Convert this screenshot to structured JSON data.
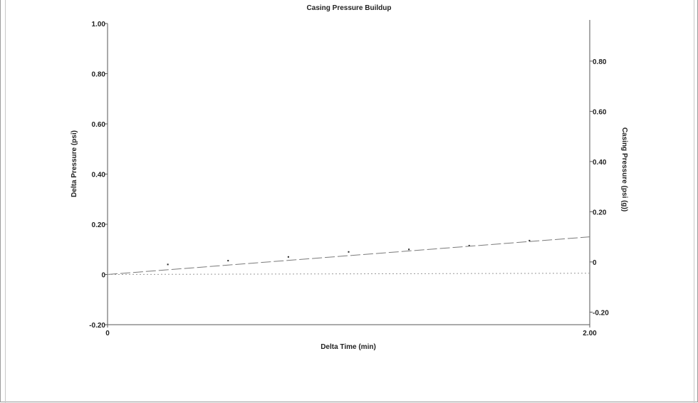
{
  "chart_data": {
    "type": "line",
    "title": "Casing Pressure Buildup",
    "xlabel": "Delta Time (min)",
    "ylabel": "Delta Pressure (psi)",
    "y2label": "Casing Pressure (psi (g))",
    "xlim": [
      0,
      2.0
    ],
    "ylim": [
      -0.2,
      1.0
    ],
    "y2lim": [
      -0.25,
      0.95
    ],
    "x_tick_labels": [
      "0",
      "2.00"
    ],
    "y_tick_labels": [
      "-0.20",
      "0",
      "0.20",
      "0.40",
      "0.60",
      "0.80",
      "1.00"
    ],
    "y2_tick_labels": [
      "-0.20",
      "0",
      "0.20",
      "0.40",
      "0.60",
      "0.80"
    ],
    "grid": false,
    "colors": {
      "axis": "#555555",
      "trend": "#7a7a7a",
      "baseline": "#9a9a9a",
      "points": "#222222"
    },
    "series": [
      {
        "style": "points",
        "axis": "left",
        "x": [
          0.25,
          0.5,
          0.75,
          1.0,
          1.25,
          1.5,
          1.75
        ],
        "y": [
          0.04,
          0.055,
          0.07,
          0.09,
          0.1,
          0.115,
          0.135
        ]
      },
      {
        "style": "dashed",
        "axis": "left",
        "x": [
          0,
          2.0
        ],
        "y": [
          0.0,
          0.15
        ]
      },
      {
        "style": "dotted",
        "axis": "left",
        "x": [
          0,
          2.0
        ],
        "y": [
          0.0,
          0.005
        ]
      }
    ]
  }
}
